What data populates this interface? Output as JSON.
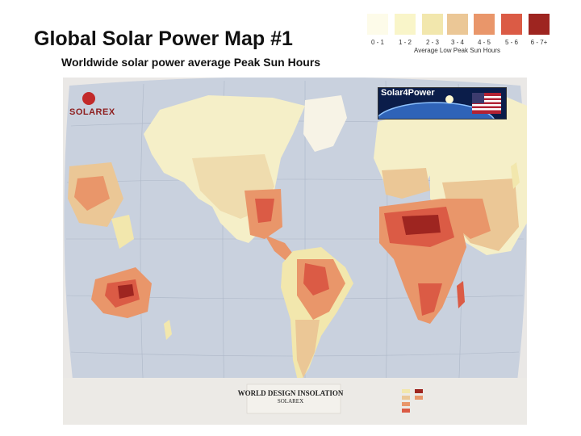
{
  "header": {
    "title": "Global Solar Power Map #1",
    "subtitle": "Worldwide solar power average Peak Sun Hours"
  },
  "legend": {
    "caption": "Average Low Peak Sun Hours",
    "classes": [
      {
        "range": "0 - 1",
        "color": "#fdfbe9"
      },
      {
        "range": "1 - 2",
        "color": "#f9f5c9"
      },
      {
        "range": "2 - 3",
        "color": "#f2e7ad"
      },
      {
        "range": "3 - 4",
        "color": "#ebc796"
      },
      {
        "range": "4 - 5",
        "color": "#e9966a"
      },
      {
        "range": "5 - 6",
        "color": "#db5b45"
      },
      {
        "range": "6 - 7+",
        "color": "#9e2520"
      }
    ]
  },
  "map": {
    "logo": "SOLAREX",
    "badge": "Solar4Power",
    "title": "WORLD DESIGN INSOLATION",
    "publisher": "SOLAREX"
  }
}
